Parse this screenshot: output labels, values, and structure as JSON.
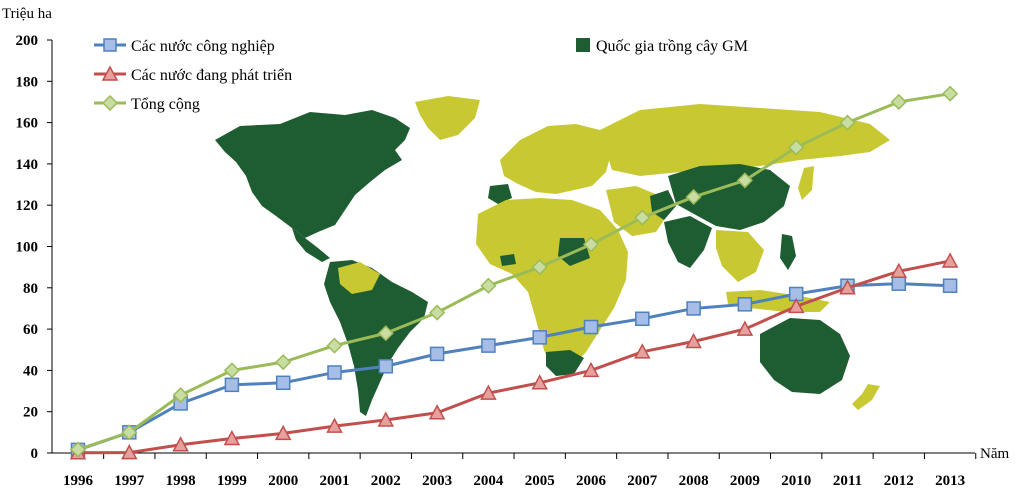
{
  "chart_data": {
    "type": "line",
    "ylabel": "Triệu ha",
    "xlabel": "Năm",
    "ylim": [
      0,
      200
    ],
    "yticks": [
      "0",
      "20",
      "40",
      "60",
      "80",
      "100",
      "120",
      "140",
      "160",
      "180",
      "200"
    ],
    "categories": [
      "1996",
      "1997",
      "1998",
      "1999",
      "2000",
      "2001",
      "2002",
      "2003",
      "2004",
      "2005",
      "2006",
      "2007",
      "2008",
      "2009",
      "2010",
      "2011",
      "2012",
      "2013"
    ],
    "series": [
      {
        "name": "Các nước công nghiệp",
        "color": "#4F81BD",
        "marker": "square",
        "values": [
          1.5,
          10,
          24,
          33,
          34,
          39,
          42,
          48,
          52,
          56,
          61,
          65,
          70,
          72,
          77,
          81,
          82,
          81
        ]
      },
      {
        "name": "Các nước đang phát triển",
        "color": "#C0504D",
        "marker": "triangle",
        "values": [
          0.1,
          0.2,
          4,
          7,
          9.5,
          13,
          16,
          19.5,
          29,
          34,
          40,
          49,
          54,
          60,
          71,
          80,
          88,
          93
        ]
      },
      {
        "name": "Tổng cộng",
        "color": "#9BBB59",
        "marker": "diamond",
        "values": [
          1.7,
          10,
          28,
          40,
          44,
          52,
          58,
          68,
          81,
          90,
          101,
          114,
          124,
          132,
          148,
          160,
          170,
          174
        ]
      }
    ],
    "map_legend": {
      "label": "Quốc gia trồng cây GM",
      "color": "#1E5C32"
    },
    "map_colors": {
      "gm": "#1E5C32",
      "other": "#C8C832"
    }
  }
}
